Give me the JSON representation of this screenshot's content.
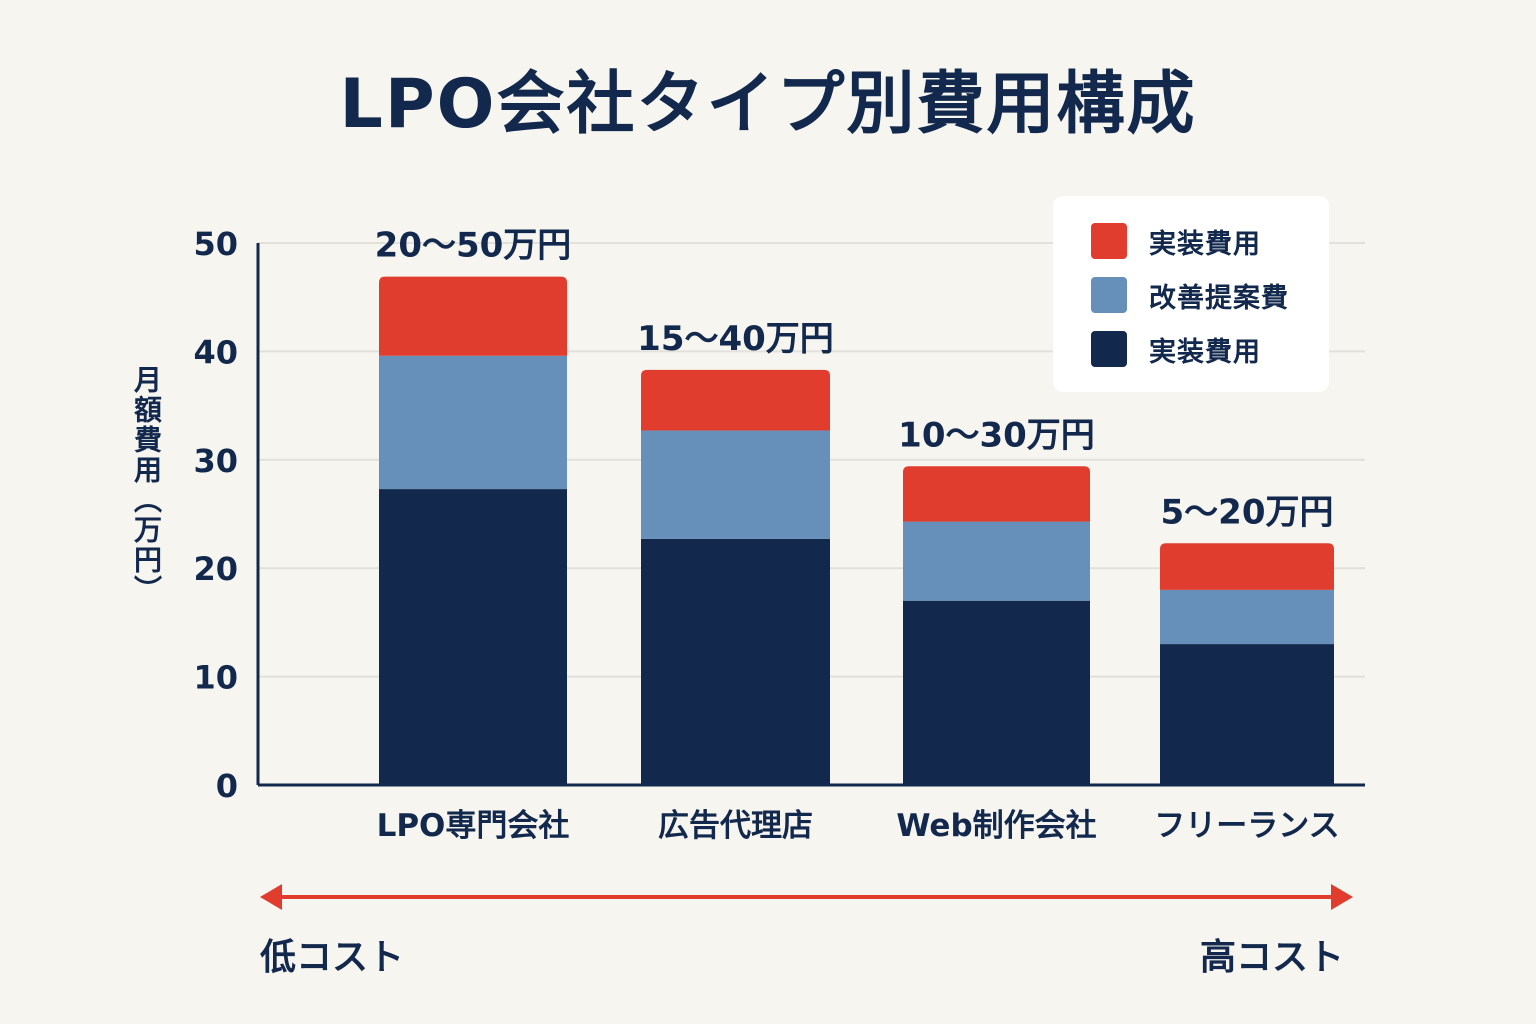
{
  "chart_data": {
    "type": "bar",
    "stacked": true,
    "title": "LPO会社タイプ別費用構成",
    "ylabel": "月額費用（万円）",
    "xlabel": "",
    "ylim": [
      0,
      50
    ],
    "yticks": [
      0,
      10,
      20,
      30,
      40,
      50
    ],
    "grid": true,
    "legend_position": "top-right",
    "categories": [
      "LPO専門会社",
      "広告代理店",
      "Web制作会社",
      "フリーランス"
    ],
    "series": [
      {
        "name": "実装費用",
        "color": "#12294d",
        "values": [
          27.3,
          22.7,
          17.0,
          13.0
        ]
      },
      {
        "name": "改善提案費",
        "color": "#6690ba",
        "values": [
          12.3,
          10.0,
          7.3,
          5.0
        ]
      },
      {
        "name": "実装費用",
        "color": "#e03d2e",
        "values": [
          7.3,
          5.6,
          5.1,
          4.3
        ]
      }
    ],
    "bar_labels": [
      "20～50万円",
      "15～40万円",
      "10～30万円",
      "5～20万円"
    ],
    "legend_order": [
      2,
      1,
      0
    ]
  },
  "cost_scale": {
    "low_label": "低コスト",
    "high_label": "高コスト",
    "arrow_color": "#e03d2e"
  }
}
